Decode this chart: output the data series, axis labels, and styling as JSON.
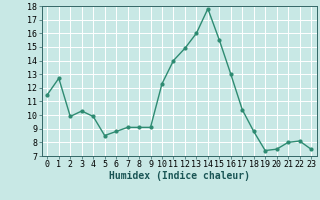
{
  "x": [
    0,
    1,
    2,
    3,
    4,
    5,
    6,
    7,
    8,
    9,
    10,
    11,
    12,
    13,
    14,
    15,
    16,
    17,
    18,
    19,
    20,
    21,
    22,
    23
  ],
  "y": [
    11.5,
    12.7,
    9.9,
    10.3,
    9.9,
    8.5,
    8.8,
    9.1,
    9.1,
    9.1,
    12.3,
    14.0,
    14.9,
    16.0,
    17.8,
    15.5,
    13.0,
    10.4,
    8.8,
    7.4,
    7.5,
    8.0,
    8.1,
    7.5
  ],
  "line_color": "#2e8b72",
  "marker": "o",
  "marker_size": 2,
  "bg_color": "#c8e8e5",
  "grid_color": "#ffffff",
  "xlabel": "Humidex (Indice chaleur)",
  "ylim": [
    7,
    18
  ],
  "xlim": [
    -0.5,
    23.5
  ],
  "yticks": [
    7,
    8,
    9,
    10,
    11,
    12,
    13,
    14,
    15,
    16,
    17,
    18
  ],
  "xticks": [
    0,
    1,
    2,
    3,
    4,
    5,
    6,
    7,
    8,
    9,
    10,
    11,
    12,
    13,
    14,
    15,
    16,
    17,
    18,
    19,
    20,
    21,
    22,
    23
  ],
  "xlabel_fontsize": 7,
  "tick_fontsize": 6,
  "line_width": 1.0,
  "fig_width": 3.2,
  "fig_height": 2.0,
  "dpi": 100
}
